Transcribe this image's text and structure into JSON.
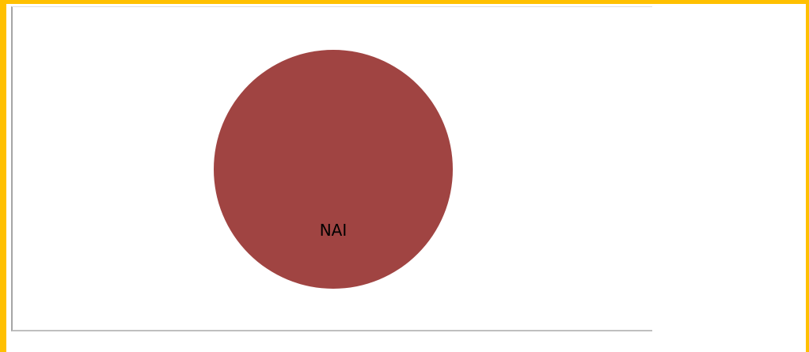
{
  "chart_data": {
    "type": "pie",
    "categories": [
      "NAI"
    ],
    "values": [
      100
    ],
    "colors": [
      "#a04442"
    ]
  }
}
